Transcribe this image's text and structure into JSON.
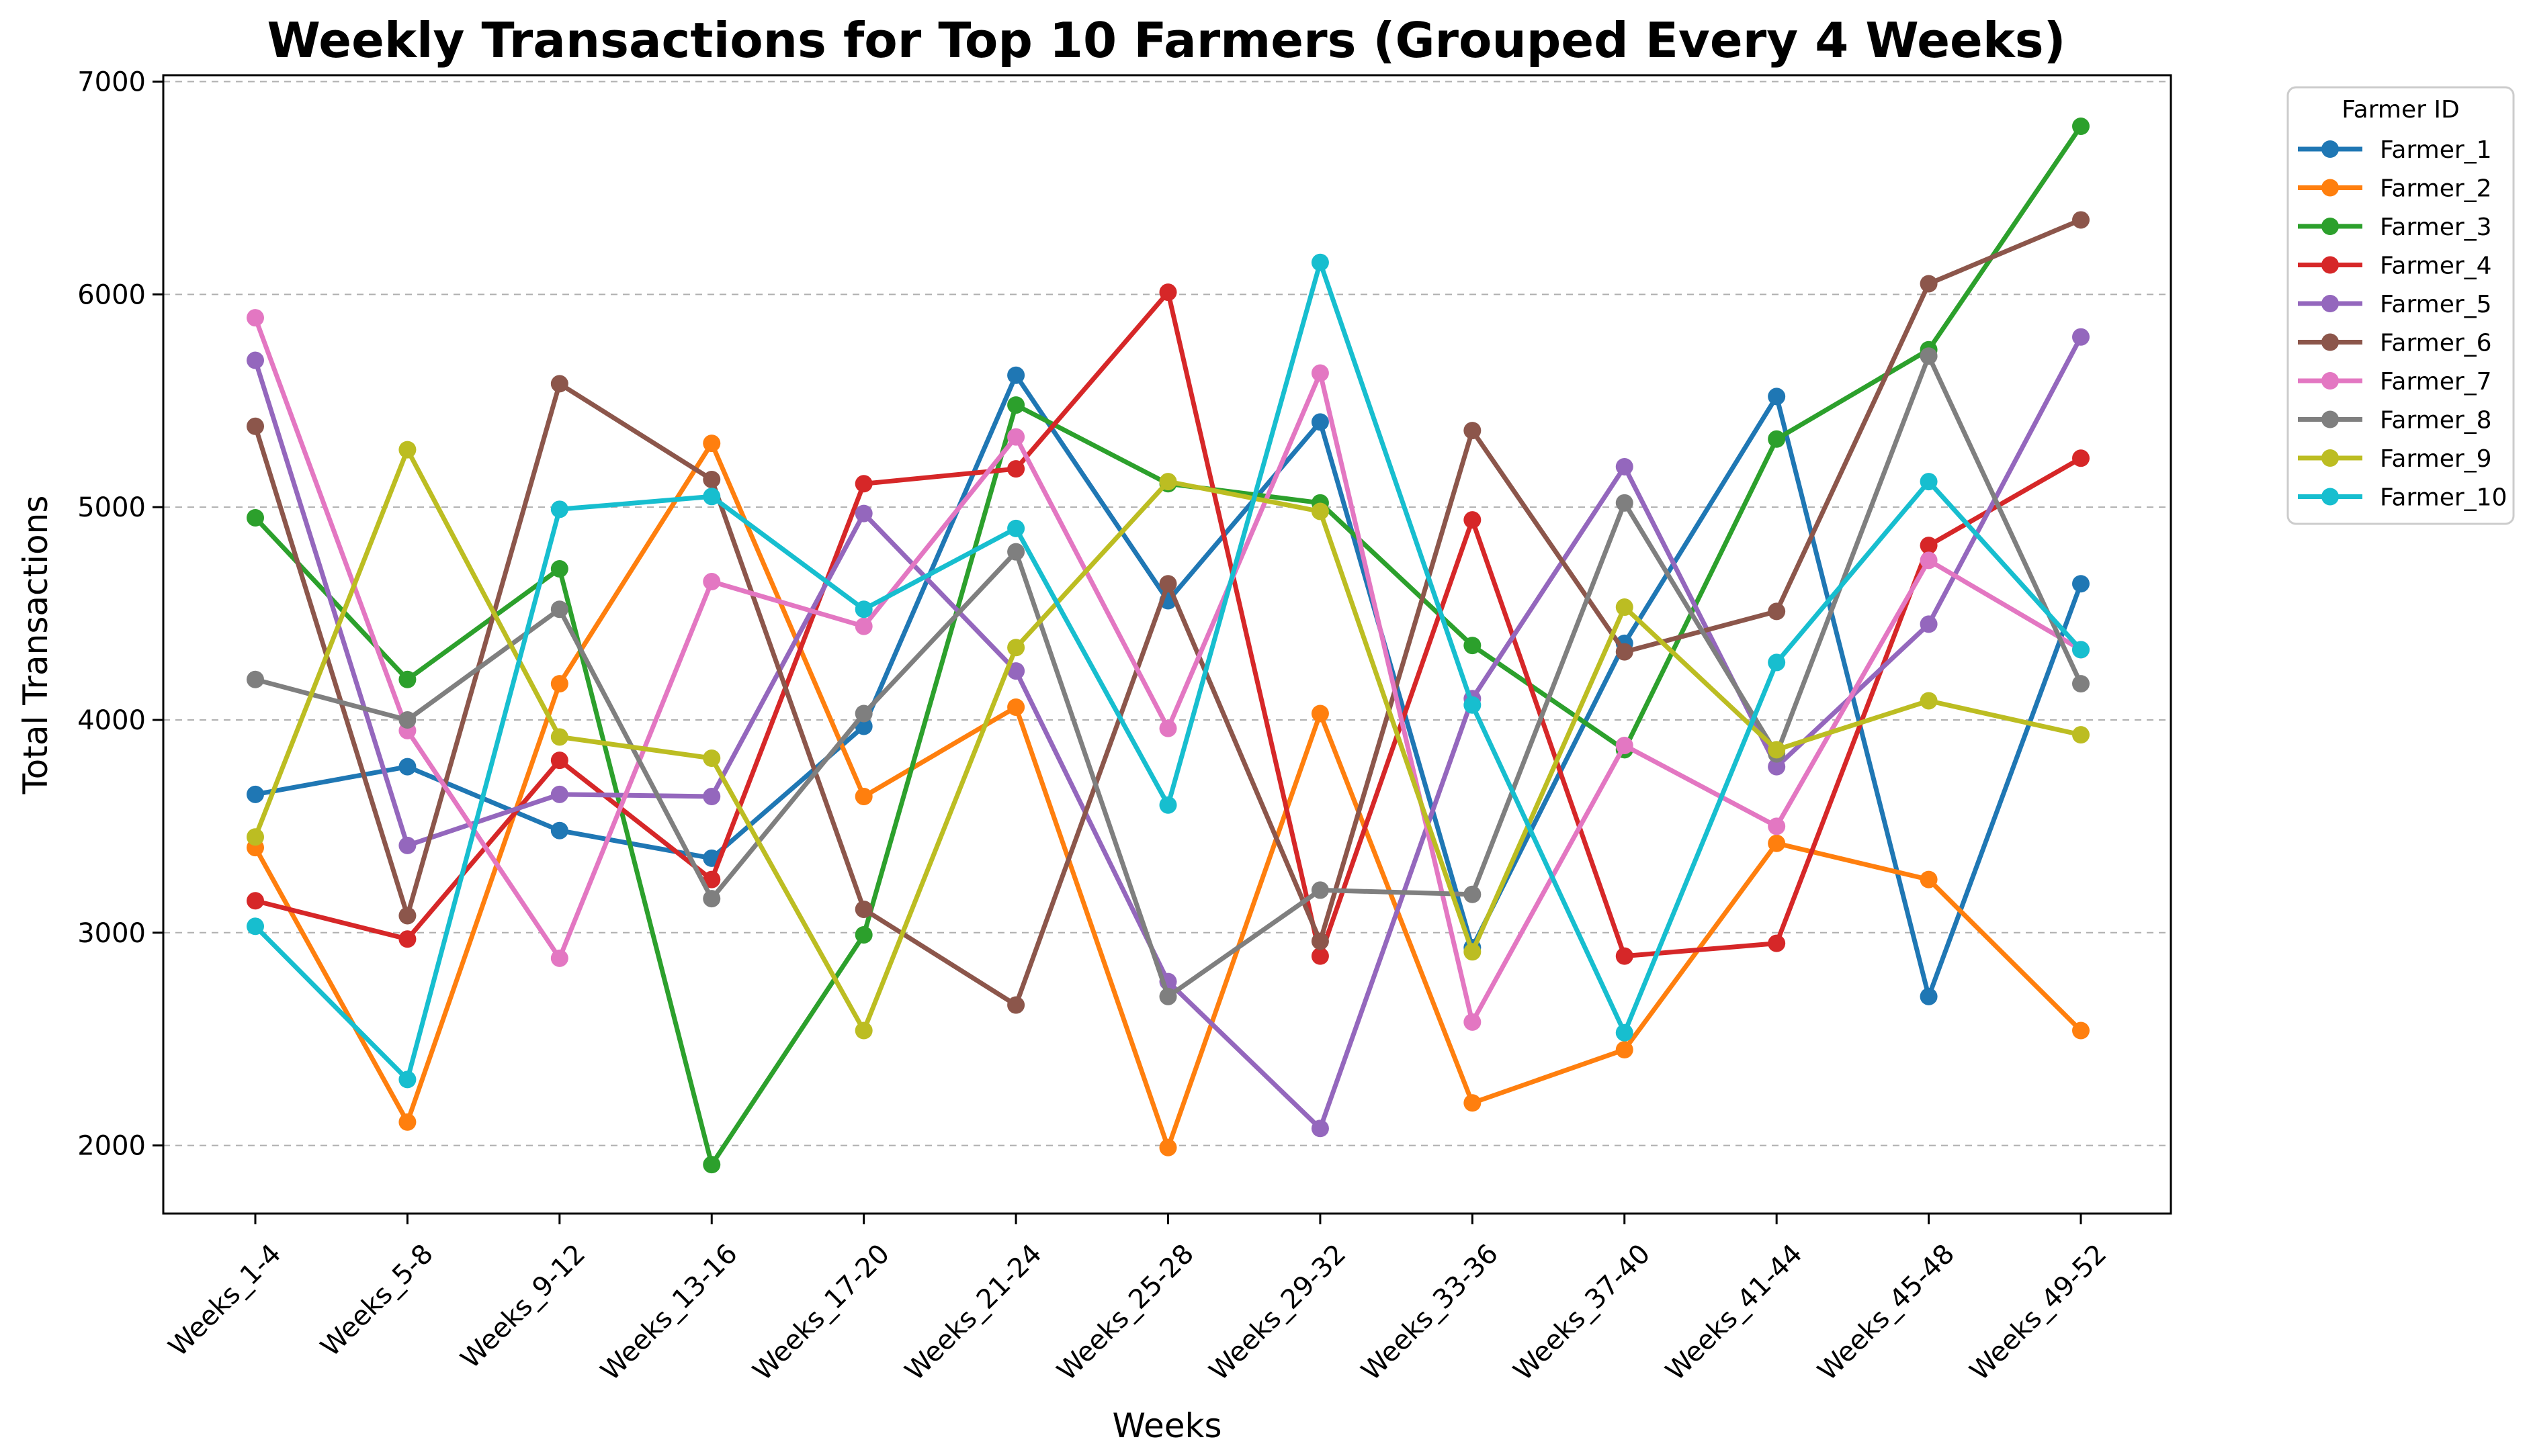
{
  "chart_data": {
    "type": "line",
    "title": "Weekly Transactions for Top 10 Farmers (Grouped Every 4 Weeks)",
    "xlabel": "Weeks",
    "ylabel": "Total Transactions",
    "categories": [
      "Weeks_1-4",
      "Weeks_5-8",
      "Weeks_9-12",
      "Weeks_13-16",
      "Weeks_17-20",
      "Weeks_21-24",
      "Weeks_25-28",
      "Weeks_29-32",
      "Weeks_33-36",
      "Weeks_37-40",
      "Weeks_41-44",
      "Weeks_45-48",
      "Weeks_49-52"
    ],
    "ylim": [
      1680,
      7030
    ],
    "yticks": [
      2000,
      3000,
      4000,
      5000,
      6000,
      7000
    ],
    "grid": "y-dashed",
    "legend_title": "Farmer ID",
    "legend_position": "outside-top-right",
    "series": [
      {
        "name": "Farmer_1",
        "color": "#1f77b4",
        "values": [
          3650,
          3780,
          3480,
          3350,
          3970,
          5620,
          4560,
          5400,
          2930,
          4360,
          5520,
          2700,
          4640
        ]
      },
      {
        "name": "Farmer_2",
        "color": "#ff7f0e",
        "values": [
          3400,
          2110,
          4170,
          5300,
          3640,
          4060,
          1990,
          4030,
          2200,
          2450,
          3420,
          3250,
          2540
        ]
      },
      {
        "name": "Farmer_3",
        "color": "#2ca02c",
        "values": [
          4950,
          4190,
          4710,
          1910,
          2990,
          5480,
          5110,
          5020,
          4350,
          3860,
          5320,
          5740,
          6790
        ]
      },
      {
        "name": "Farmer_4",
        "color": "#d62728",
        "values": [
          3150,
          2970,
          3810,
          3250,
          5110,
          5180,
          6010,
          2890,
          4940,
          2890,
          2950,
          4820,
          5230
        ]
      },
      {
        "name": "Farmer_5",
        "color": "#9467bd",
        "values": [
          5690,
          3410,
          3650,
          3640,
          4970,
          4230,
          2770,
          2080,
          4100,
          5190,
          3780,
          4450,
          5800
        ]
      },
      {
        "name": "Farmer_6",
        "color": "#8c564b",
        "values": [
          5380,
          3080,
          5580,
          5130,
          3110,
          2660,
          4640,
          2960,
          5360,
          4320,
          4510,
          6050,
          6350
        ]
      },
      {
        "name": "Farmer_7",
        "color": "#e377c2",
        "values": [
          5890,
          3950,
          2880,
          4650,
          4440,
          5330,
          3960,
          5630,
          2580,
          3880,
          3500,
          4750,
          4330
        ]
      },
      {
        "name": "Farmer_8",
        "color": "#7f7f7f",
        "values": [
          4190,
          4000,
          4520,
          3160,
          4030,
          4790,
          2700,
          3200,
          3180,
          5020,
          3840,
          5710,
          4170
        ]
      },
      {
        "name": "Farmer_9",
        "color": "#bcbd22",
        "values": [
          3450,
          5270,
          3920,
          3820,
          2540,
          4340,
          5120,
          4980,
          2910,
          4530,
          3860,
          4090,
          3930
        ]
      },
      {
        "name": "Farmer_10",
        "color": "#17becf",
        "values": [
          3030,
          2310,
          4990,
          5050,
          4520,
          4900,
          3600,
          6150,
          4070,
          2530,
          4270,
          5120,
          4330
        ]
      }
    ]
  }
}
